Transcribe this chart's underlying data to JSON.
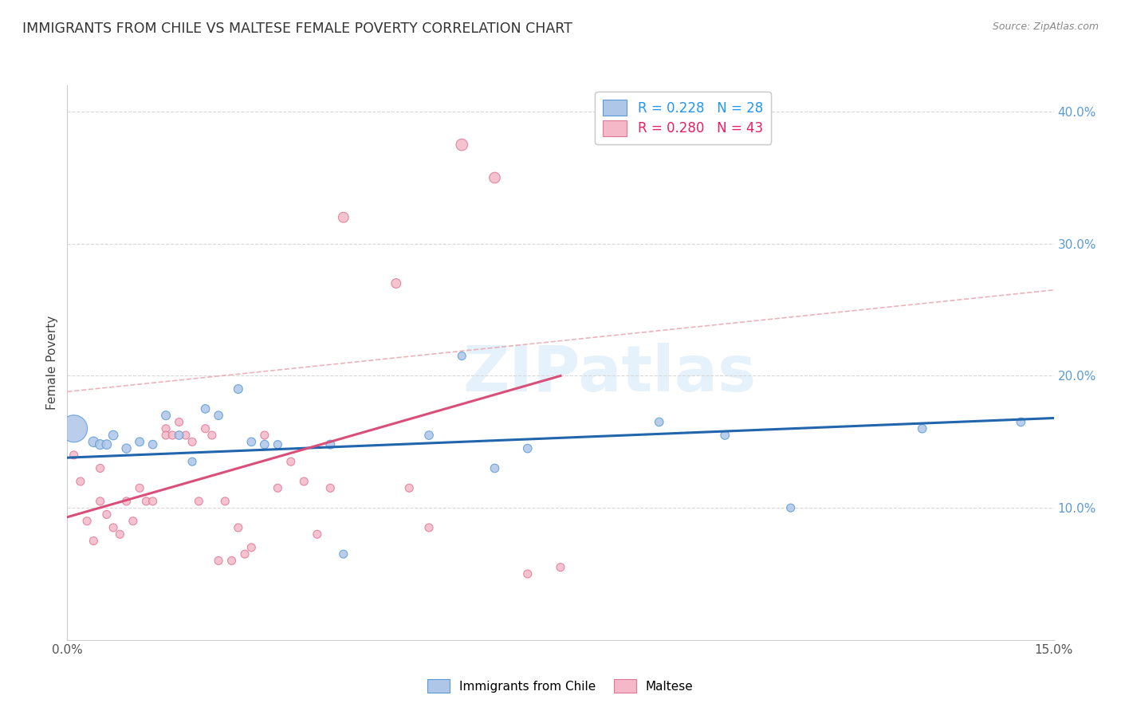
{
  "title": "IMMIGRANTS FROM CHILE VS MALTESE FEMALE POVERTY CORRELATION CHART",
  "source": "Source: ZipAtlas.com",
  "ylabel": "Female Poverty",
  "legend_label_1": "Immigrants from Chile",
  "legend_label_2": "Maltese",
  "r1": 0.228,
  "n1": 28,
  "r2": 0.28,
  "n2": 43,
  "color_blue_fill": "#aec6e8",
  "color_pink_fill": "#f4b8c8",
  "color_blue_edge": "#5b9bd5",
  "color_pink_edge": "#e07898",
  "color_blue_line": "#2166ac",
  "color_pink_line": "#d94f7a",
  "color_dashed": "#e8a0a8",
  "watermark": "ZIPatlas",
  "xmin": 0.0,
  "xmax": 0.15,
  "ymin": 0.0,
  "ymax": 0.42,
  "yticks_right": [
    0.1,
    0.2,
    0.3,
    0.4
  ],
  "ytick_labels_right": [
    "10.0%",
    "20.0%",
    "30.0%",
    "40.0%"
  ],
  "blue_points_x": [
    0.001,
    0.004,
    0.005,
    0.006,
    0.007,
    0.009,
    0.011,
    0.013,
    0.015,
    0.017,
    0.019,
    0.021,
    0.023,
    0.026,
    0.028,
    0.03,
    0.032,
    0.04,
    0.042,
    0.055,
    0.06,
    0.065,
    0.07,
    0.09,
    0.1,
    0.11,
    0.13,
    0.145
  ],
  "blue_points_y": [
    0.16,
    0.15,
    0.148,
    0.148,
    0.155,
    0.145,
    0.15,
    0.148,
    0.17,
    0.155,
    0.135,
    0.175,
    0.17,
    0.19,
    0.15,
    0.148,
    0.148,
    0.148,
    0.065,
    0.155,
    0.215,
    0.13,
    0.145,
    0.165,
    0.155,
    0.1,
    0.16,
    0.165
  ],
  "blue_points_size": [
    600,
    80,
    75,
    70,
    70,
    65,
    60,
    58,
    62,
    58,
    52,
    58,
    58,
    62,
    58,
    58,
    52,
    62,
    52,
    58,
    52,
    58,
    58,
    58,
    58,
    52,
    58,
    58
  ],
  "pink_points_x": [
    0.001,
    0.002,
    0.003,
    0.004,
    0.005,
    0.005,
    0.006,
    0.007,
    0.008,
    0.009,
    0.01,
    0.011,
    0.012,
    0.013,
    0.015,
    0.015,
    0.016,
    0.017,
    0.018,
    0.019,
    0.02,
    0.021,
    0.022,
    0.023,
    0.024,
    0.025,
    0.026,
    0.027,
    0.028,
    0.03,
    0.032,
    0.034,
    0.036,
    0.038,
    0.04,
    0.042,
    0.05,
    0.052,
    0.055,
    0.06,
    0.065,
    0.07,
    0.075
  ],
  "pink_points_y": [
    0.14,
    0.12,
    0.09,
    0.075,
    0.13,
    0.105,
    0.095,
    0.085,
    0.08,
    0.105,
    0.09,
    0.115,
    0.105,
    0.105,
    0.16,
    0.155,
    0.155,
    0.165,
    0.155,
    0.15,
    0.105,
    0.16,
    0.155,
    0.06,
    0.105,
    0.06,
    0.085,
    0.065,
    0.07,
    0.155,
    0.115,
    0.135,
    0.12,
    0.08,
    0.115,
    0.32,
    0.27,
    0.115,
    0.085,
    0.375,
    0.35,
    0.05,
    0.055
  ],
  "pink_points_size": [
    52,
    52,
    52,
    52,
    52,
    52,
    52,
    52,
    52,
    52,
    52,
    52,
    52,
    52,
    52,
    52,
    52,
    52,
    52,
    52,
    52,
    52,
    52,
    52,
    52,
    52,
    52,
    52,
    52,
    52,
    52,
    52,
    52,
    52,
    52,
    85,
    72,
    52,
    52,
    110,
    95,
    52,
    52
  ],
  "blue_trend_x": [
    0.0,
    0.15
  ],
  "blue_trend_y": [
    0.138,
    0.168
  ],
  "pink_trend_x": [
    0.0,
    0.075
  ],
  "pink_trend_y": [
    0.093,
    0.2
  ],
  "dashed_trend_x": [
    0.0,
    0.15
  ],
  "dashed_trend_y": [
    0.188,
    0.265
  ]
}
